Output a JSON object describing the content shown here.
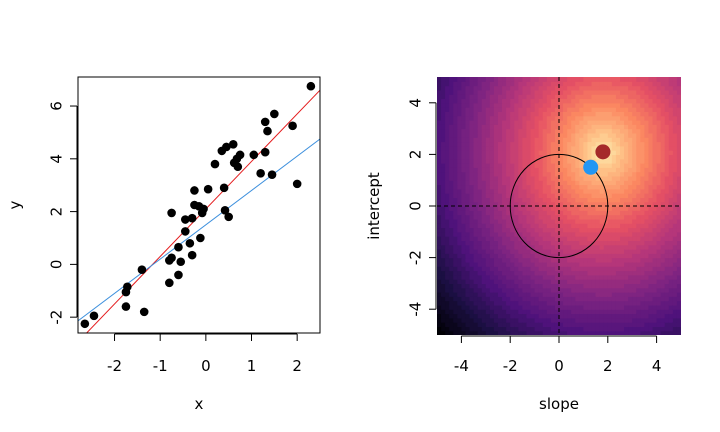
{
  "chart_data": [
    {
      "type": "scatter",
      "xlabel": "x",
      "ylabel": "y",
      "xlim": [
        -2.8,
        2.5
      ],
      "ylim": [
        -2.6,
        7.1
      ],
      "xticks": [
        -2,
        -1,
        0,
        1,
        2
      ],
      "yticks": [
        -2,
        0,
        2,
        4,
        6
      ],
      "grid": false,
      "point_color": "#000000",
      "points": [
        [
          -2.65,
          -2.25
        ],
        [
          -2.45,
          -1.95
        ],
        [
          -1.75,
          -1.6
        ],
        [
          -1.75,
          -1.05
        ],
        [
          -1.72,
          -0.85
        ],
        [
          -1.4,
          -0.2
        ],
        [
          -1.35,
          -1.8
        ],
        [
          -0.8,
          -0.7
        ],
        [
          -0.8,
          0.15
        ],
        [
          -0.75,
          0.25
        ],
        [
          -0.75,
          1.95
        ],
        [
          -0.6,
          -0.4
        ],
        [
          -0.6,
          0.65
        ],
        [
          -0.55,
          0.1
        ],
        [
          -0.45,
          1.25
        ],
        [
          -0.45,
          1.7
        ],
        [
          -0.35,
          0.8
        ],
        [
          -0.3,
          0.35
        ],
        [
          -0.3,
          1.75
        ],
        [
          -0.25,
          2.8
        ],
        [
          -0.25,
          2.25
        ],
        [
          -0.15,
          2.2
        ],
        [
          -0.12,
          1.0
        ],
        [
          -0.08,
          1.95
        ],
        [
          -0.05,
          2.1
        ],
        [
          0.05,
          2.85
        ],
        [
          0.2,
          3.8
        ],
        [
          0.35,
          4.3
        ],
        [
          0.4,
          2.9
        ],
        [
          0.42,
          2.05
        ],
        [
          0.45,
          4.45
        ],
        [
          0.5,
          1.8
        ],
        [
          0.6,
          4.55
        ],
        [
          0.62,
          3.85
        ],
        [
          0.68,
          4.0
        ],
        [
          0.7,
          3.7
        ],
        [
          0.75,
          4.15
        ],
        [
          1.05,
          4.15
        ],
        [
          1.2,
          3.45
        ],
        [
          1.3,
          4.25
        ],
        [
          1.3,
          5.4
        ],
        [
          1.35,
          5.05
        ],
        [
          1.45,
          3.4
        ],
        [
          1.5,
          5.7
        ],
        [
          1.9,
          5.25
        ],
        [
          2.0,
          3.05
        ],
        [
          2.3,
          6.75
        ]
      ],
      "lines": [
        {
          "color": "#e41a1c",
          "intercept": 2.1,
          "slope": 1.8
        },
        {
          "color": "#3c8fdd",
          "intercept": 1.5,
          "slope": 1.3
        }
      ]
    },
    {
      "type": "heatmap",
      "xlabel": "slope",
      "ylabel": "intercept",
      "xlim": [
        -5,
        5
      ],
      "ylim": [
        -5,
        5
      ],
      "xticks": [
        -4,
        -2,
        0,
        2,
        4
      ],
      "yticks": [
        -4,
        -2,
        0,
        2,
        4
      ],
      "colormap": "magma",
      "peak": [
        1.8,
        2.1
      ],
      "reference_lines": {
        "x": 0,
        "y": 0,
        "style": "dashed"
      },
      "circle": {
        "center": [
          0,
          0
        ],
        "radius": 2
      },
      "markers": [
        {
          "x": 1.8,
          "y": 2.1,
          "color": "#a52a2a"
        },
        {
          "x": 1.3,
          "y": 1.5,
          "color": "#2196f3"
        }
      ]
    }
  ]
}
